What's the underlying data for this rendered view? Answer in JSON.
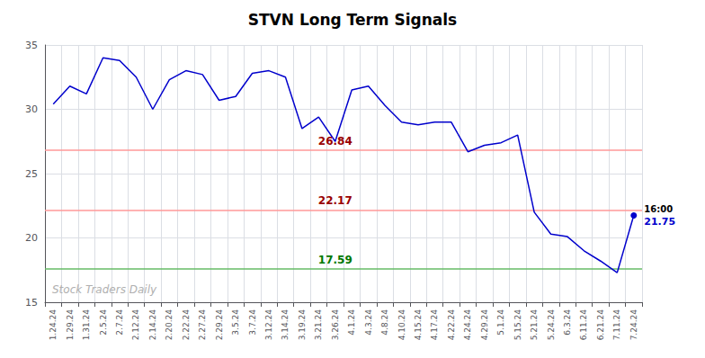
{
  "chart_data": {
    "type": "line",
    "title": "STVN Long Term Signals",
    "categories": [
      "1.24.24",
      "1.29.24",
      "1.31.24",
      "2.5.24",
      "2.7.24",
      "2.12.24",
      "2.14.24",
      "2.20.24",
      "2.22.24",
      "2.27.24",
      "2.29.24",
      "3.5.24",
      "3.7.24",
      "3.12.24",
      "3.14.24",
      "3.19.24",
      "3.21.24",
      "3.26.24",
      "4.1.24",
      "4.3.24",
      "4.8.24",
      "4.10.24",
      "4.15.24",
      "4.17.24",
      "4.22.24",
      "4.24.24",
      "4.29.24",
      "5.1.24",
      "5.15.24",
      "5.21.24",
      "5.24.24",
      "6.3.24",
      "6.11.24",
      "6.21.24",
      "7.11.24",
      "7.24.24"
    ],
    "values": [
      30.4,
      31.8,
      31.2,
      34.0,
      33.8,
      32.5,
      30.0,
      32.3,
      33.0,
      32.7,
      30.7,
      31.0,
      32.8,
      33.0,
      32.5,
      28.5,
      29.4,
      27.5,
      31.5,
      31.8,
      30.3,
      29.0,
      28.8,
      29.0,
      29.0,
      26.7,
      27.2,
      27.4,
      28.0,
      22.0,
      20.3,
      20.1,
      19.0,
      18.2,
      17.3,
      21.75
    ],
    "color": "#0000cc",
    "ylim": [
      15,
      35
    ],
    "yticks": [
      15,
      20,
      25,
      30,
      35
    ],
    "grid": true,
    "hlines": [
      {
        "value": 26.84,
        "label": "26.84",
        "color": "#ff9999",
        "label_color": "#990000",
        "label_x": "3.26.24"
      },
      {
        "value": 22.17,
        "label": "22.17",
        "color": "#ff9999",
        "label_color": "#990000",
        "label_x": "3.26.24"
      },
      {
        "value": 17.59,
        "label": "17.59",
        "color": "#66bb66",
        "label_color": "#007700",
        "label_x": "3.26.24"
      }
    ],
    "last_point": {
      "value": 21.75,
      "label": "21.75",
      "time_label": "16:00",
      "color": "#0000cc"
    },
    "watermark": "Stock Traders Daily"
  }
}
